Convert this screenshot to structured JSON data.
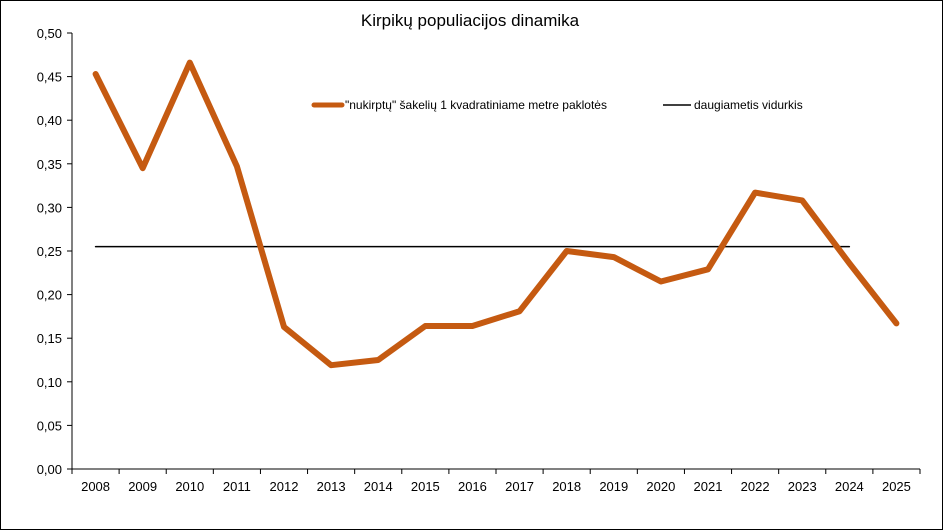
{
  "chart_data": {
    "type": "line",
    "title": "Kirpikų populiacijos dinamika",
    "xlabel": "",
    "ylabel": "",
    "categories": [
      "2008",
      "2009",
      "2010",
      "2011",
      "2012",
      "2013",
      "2014",
      "2015",
      "2016",
      "2017",
      "2018",
      "2019",
      "2020",
      "2021",
      "2022",
      "2023",
      "2024",
      "2025"
    ],
    "ylim": [
      0,
      0.5
    ],
    "yticks": [
      0,
      0.05,
      0.1,
      0.15,
      0.2,
      0.25,
      0.3,
      0.35,
      0.4,
      0.45,
      0.5
    ],
    "ytick_labels": [
      "0,00",
      "0,05",
      "0,10",
      "0,15",
      "0,20",
      "0,25",
      "0,30",
      "0,35",
      "0,40",
      "0,45",
      "0,50"
    ],
    "grid": false,
    "legend_position": "top-right",
    "series": [
      {
        "name": "\"nukirptų\" šakelių 1 kvadratiniame metre paklotės",
        "color": "#C55A11",
        "values": [
          0.453,
          0.345,
          0.466,
          0.347,
          0.163,
          0.119,
          0.125,
          0.164,
          0.164,
          0.181,
          0.25,
          0.243,
          0.215,
          0.229,
          0.317,
          0.308,
          0.236,
          0.167
        ]
      },
      {
        "name": "daugiametis vidurkis",
        "color": "#000000",
        "values": [
          0.255,
          0.255,
          0.255,
          0.255,
          0.255,
          0.255,
          0.255,
          0.255,
          0.255,
          0.255,
          0.255,
          0.255,
          0.255,
          0.255,
          0.255,
          0.255,
          0.255,
          null
        ]
      }
    ]
  }
}
